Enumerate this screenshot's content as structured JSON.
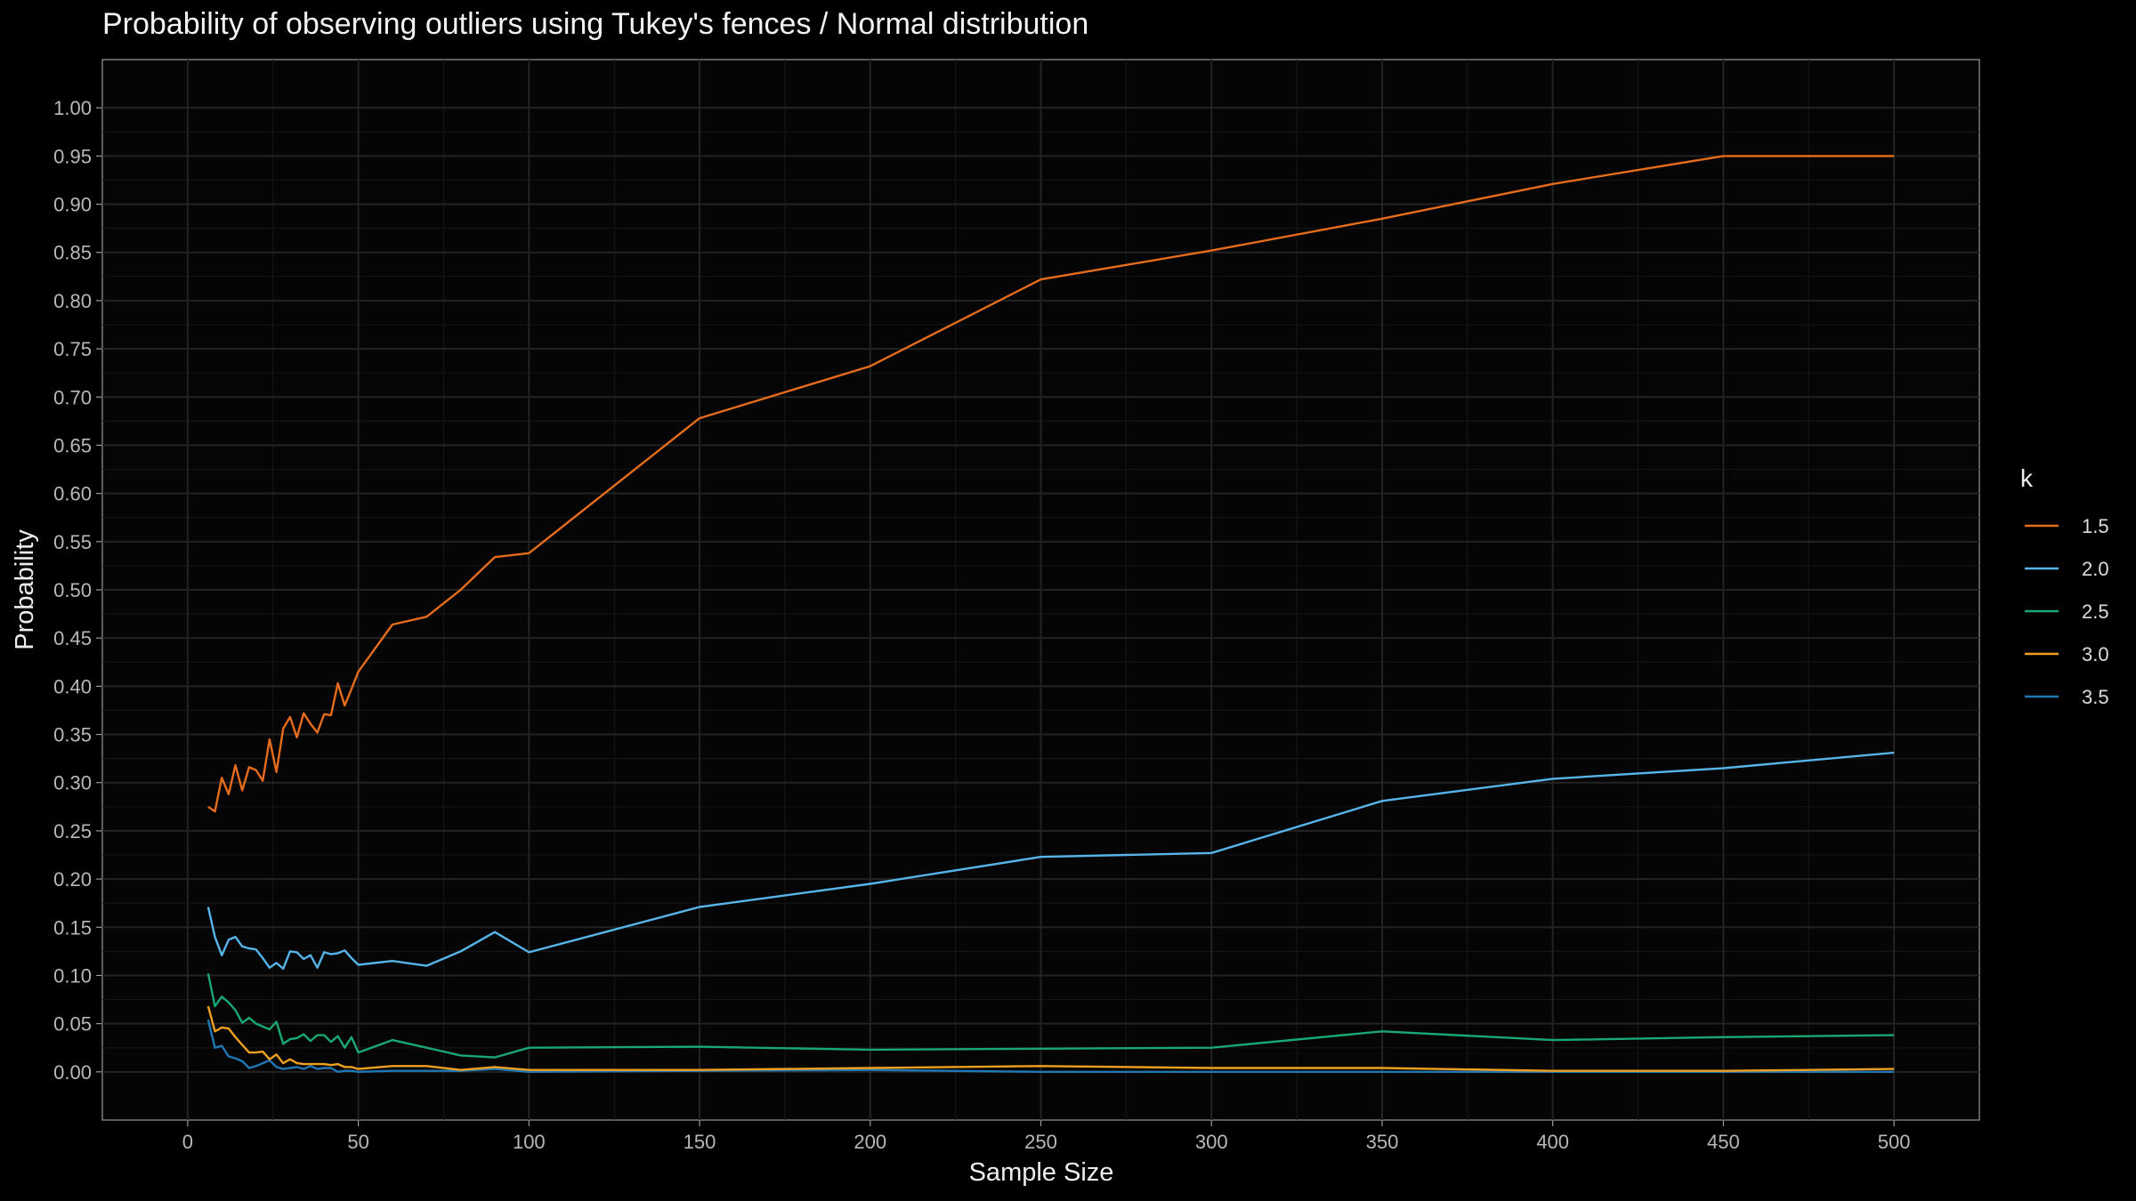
{
  "chart_data": {
    "type": "line",
    "title": "Probability of observing outliers using Tukey's fences / Normal distribution",
    "xlabel": "Sample Size",
    "ylabel": "Probability",
    "xlim": [
      -25,
      525
    ],
    "ylim": [
      -0.05,
      1.05
    ],
    "xticks": [
      0,
      50,
      100,
      150,
      200,
      250,
      300,
      350,
      400,
      450,
      500
    ],
    "yticks": [
      0.0,
      0.05,
      0.1,
      0.15,
      0.2,
      0.25,
      0.3,
      0.35,
      0.4,
      0.45,
      0.5,
      0.55,
      0.6,
      0.65,
      0.7,
      0.75,
      0.8,
      0.85,
      0.9,
      0.95,
      1.0
    ],
    "grid": true,
    "legend": {
      "title": "k",
      "position": "right"
    },
    "x": [
      6,
      8,
      10,
      12,
      14,
      16,
      18,
      20,
      22,
      24,
      26,
      28,
      30,
      32,
      34,
      36,
      38,
      40,
      42,
      44,
      46,
      48,
      50,
      60,
      70,
      80,
      90,
      100,
      150,
      200,
      250,
      300,
      350,
      400,
      450,
      500
    ],
    "series": [
      {
        "name": "1.5",
        "color": "#E46C1C",
        "values": [
          0.275,
          0.27,
          0.305,
          0.288,
          0.318,
          0.292,
          0.316,
          0.313,
          0.302,
          0.345,
          0.311,
          0.356,
          0.368,
          0.347,
          0.372,
          0.361,
          0.352,
          0.371,
          0.37,
          0.403,
          0.38,
          0.397,
          0.415,
          0.464,
          0.472,
          0.5,
          0.534,
          0.538,
          0.678,
          0.732,
          0.822,
          0.852,
          0.885,
          0.921,
          0.95,
          0.95
        ]
      },
      {
        "name": "2.0",
        "color": "#56B4E9",
        "values": [
          0.171,
          0.14,
          0.121,
          0.137,
          0.14,
          0.13,
          0.128,
          0.127,
          0.118,
          0.108,
          0.113,
          0.107,
          0.125,
          0.124,
          0.117,
          0.121,
          0.108,
          0.124,
          0.122,
          0.123,
          0.126,
          0.118,
          0.111,
          0.115,
          0.11,
          0.125,
          0.145,
          0.124,
          0.171,
          0.195,
          0.223,
          0.227,
          0.281,
          0.304,
          0.315,
          0.331
        ]
      },
      {
        "name": "2.5",
        "color": "#19A774",
        "values": [
          0.102,
          0.068,
          0.078,
          0.072,
          0.064,
          0.051,
          0.056,
          0.05,
          0.047,
          0.044,
          0.052,
          0.029,
          0.034,
          0.035,
          0.039,
          0.032,
          0.038,
          0.038,
          0.031,
          0.037,
          0.025,
          0.036,
          0.02,
          0.033,
          0.025,
          0.017,
          0.015,
          0.025,
          0.026,
          0.023,
          0.024,
          0.025,
          0.042,
          0.033,
          0.036,
          0.038
        ]
      },
      {
        "name": "3.0",
        "color": "#F0A020",
        "values": [
          0.068,
          0.042,
          0.046,
          0.045,
          0.036,
          0.028,
          0.02,
          0.02,
          0.021,
          0.013,
          0.018,
          0.009,
          0.013,
          0.009,
          0.008,
          0.008,
          0.008,
          0.008,
          0.007,
          0.008,
          0.005,
          0.005,
          0.003,
          0.006,
          0.006,
          0.002,
          0.005,
          0.002,
          0.002,
          0.004,
          0.006,
          0.004,
          0.004,
          0.001,
          0.001,
          0.003
        ]
      },
      {
        "name": "3.5",
        "color": "#1F78B4",
        "values": [
          0.054,
          0.025,
          0.027,
          0.016,
          0.014,
          0.011,
          0.004,
          0.006,
          0.009,
          0.012,
          0.005,
          0.003,
          0.004,
          0.005,
          0.003,
          0.006,
          0.003,
          0.004,
          0.004,
          0.0,
          0.001,
          0.001,
          0.0,
          0.001,
          0.001,
          0.001,
          0.003,
          0.0,
          0.001,
          0.002,
          0.0,
          0.0,
          0.0,
          0.0,
          0.0,
          0.0
        ]
      }
    ]
  }
}
